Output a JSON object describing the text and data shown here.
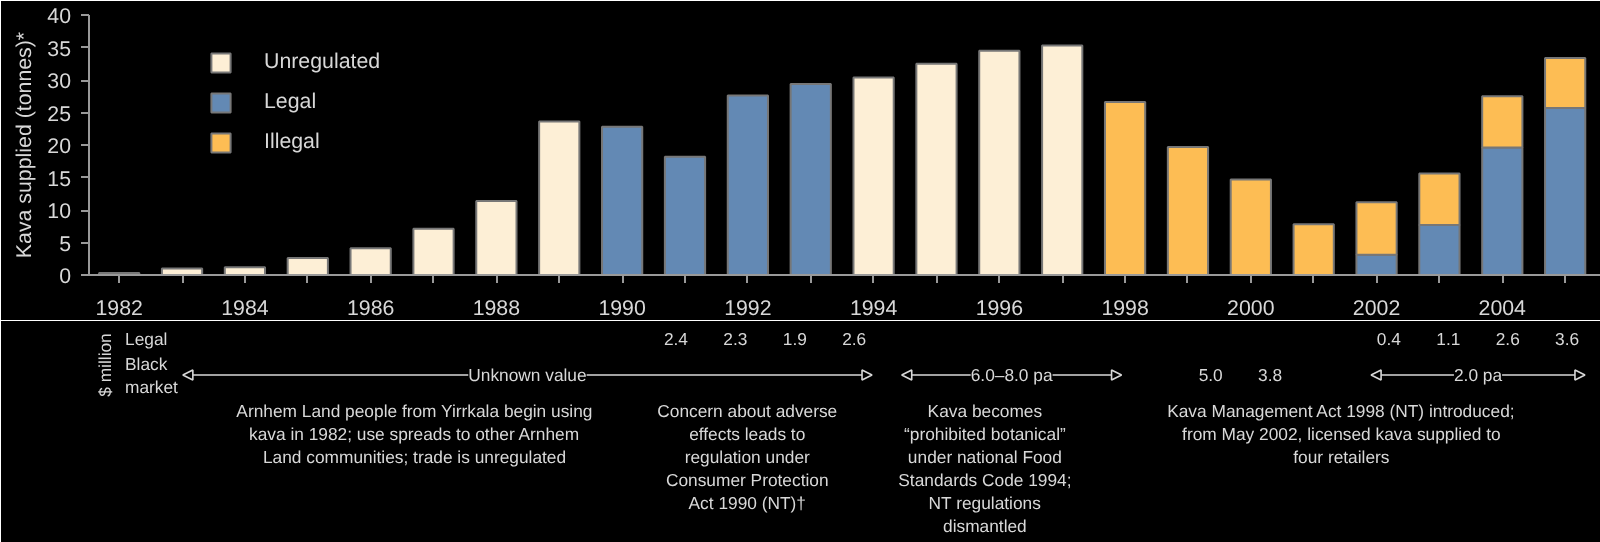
{
  "chart_data": {
    "type": "bar",
    "stacked": true,
    "ylabel": "Kava supplied (tonnes)*",
    "categories": [
      "1982",
      null,
      "1984",
      null,
      "1986",
      null,
      "1988",
      null,
      "1990",
      null,
      "1992",
      null,
      "1994",
      null,
      "1996",
      null,
      "1998",
      null,
      "2000",
      null,
      "2002",
      null,
      "2004",
      null
    ],
    "series": [
      {
        "name": "Unregulated",
        "color": "#fdefd6",
        "values": [
          0.3,
          1,
          1.2,
          2.6,
          4.1,
          7.1,
          11.4,
          23.6,
          null,
          null,
          null,
          null,
          30.4,
          32.5,
          34.5,
          35.3,
          null,
          null,
          null,
          null,
          null,
          null,
          null,
          null
        ]
      },
      {
        "name": "Legal",
        "color": "#6389b4",
        "values": [
          null,
          null,
          null,
          null,
          null,
          null,
          null,
          null,
          22.8,
          18.2,
          27.6,
          29.4,
          null,
          null,
          null,
          null,
          null,
          null,
          null,
          null,
          3.1,
          7.7,
          19.6,
          25.7
        ]
      },
      {
        "name": "Illegal",
        "color": "#fdbd54",
        "values": [
          null,
          null,
          null,
          null,
          null,
          null,
          null,
          null,
          null,
          null,
          null,
          null,
          null,
          null,
          null,
          null,
          26.6,
          19.7,
          14.7,
          7.8,
          8.1,
          7.9,
          7.9,
          7.7
        ]
      }
    ],
    "ylim": [
      0,
      40
    ],
    "yticks": [
      0,
      5,
      10,
      15,
      20,
      25,
      30,
      35,
      40
    ],
    "grid": false,
    "legend": "top left",
    "annotations": [
      "$ million",
      "Legal",
      "Black market",
      "2.4",
      "2.3",
      "1.9",
      "2.6",
      "0.4",
      "1.1",
      "2.6",
      "3.6",
      "Unknown value",
      "6.0–8.0 pa",
      "5.0",
      "3.8",
      "2.0 pa",
      "Arnhem Land people from Yirrkala begin using kava in 1982; use spreads to other Arnhem Land communities; trade is unregulated",
      "Concern about adverse effects leads to regulation under Consumer Protection Act 1990 (NT)†",
      "Kava becomes “prohibited botanical” under national Food Standards Code 1994; NT regulations dismantled",
      "Kava Management Act 1998 (NT) introduced; from May 2002, licensed kava supplied to four retailers"
    ]
  }
}
